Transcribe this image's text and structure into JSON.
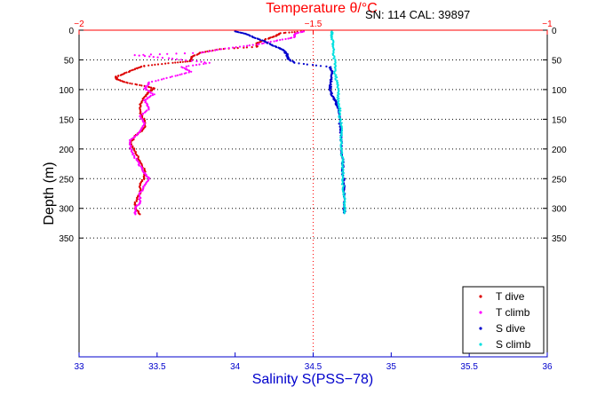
{
  "chart_data": {
    "type": "scatter",
    "annotation": "SN: 114  CAL: 39897",
    "ylabel": "Depth (m)",
    "top_axis": {
      "label": "Temperature θ/°C",
      "lim": [
        -2,
        -1
      ],
      "ticks": [
        -2,
        -1.5,
        -1
      ],
      "tick_labels": [
        "−2",
        "−1.5",
        "−1"
      ],
      "color": "#ff0000"
    },
    "bottom_axis": {
      "label": "Salinity S(PSS−78)",
      "lim": [
        33,
        36
      ],
      "ticks": [
        33,
        33.5,
        34,
        34.5,
        35,
        35.5,
        36
      ],
      "tick_labels": [
        "33",
        "33.5",
        "34",
        "34.5",
        "35",
        "35.5",
        "36"
      ],
      "color": "#0000cc"
    },
    "y_axis": {
      "lim": [
        0,
        550
      ],
      "reversed": true,
      "ticks": [
        0,
        50,
        100,
        150,
        200,
        250,
        300,
        350
      ],
      "tick_labels": [
        "0",
        "50",
        "100",
        "150",
        "200",
        "250",
        "300",
        "350"
      ]
    },
    "grid": "dotted horizontal at depth ticks, vertical at T = -1.5",
    "legend_position": "bottom-right",
    "series": [
      {
        "name": "T dive",
        "axis": "top",
        "color": "#dd0000",
        "points": [
          [
            -1.52,
            2
          ],
          [
            -1.57,
            5
          ],
          [
            -1.58,
            10
          ],
          [
            -1.6,
            15
          ],
          [
            -1.62,
            22
          ],
          [
            -1.62,
            28
          ],
          [
            -1.7,
            32
          ],
          [
            -1.74,
            38
          ],
          [
            -1.76,
            45
          ],
          [
            -1.76,
            52
          ],
          [
            -1.8,
            55
          ],
          [
            -1.86,
            60
          ],
          [
            -1.88,
            65
          ],
          [
            -1.9,
            72
          ],
          [
            -1.92,
            78
          ],
          [
            -1.92,
            82
          ],
          [
            -1.9,
            88
          ],
          [
            -1.86,
            94
          ],
          [
            -1.84,
            98
          ],
          [
            -1.85,
            104
          ],
          [
            -1.86,
            112
          ],
          [
            -1.87,
            125
          ],
          [
            -1.87,
            140
          ],
          [
            -1.86,
            152
          ],
          [
            -1.86,
            165
          ],
          [
            -1.88,
            178
          ],
          [
            -1.89,
            190
          ],
          [
            -1.88,
            205
          ],
          [
            -1.87,
            220
          ],
          [
            -1.86,
            235
          ],
          [
            -1.86,
            248
          ],
          [
            -1.87,
            260
          ],
          [
            -1.87,
            275
          ],
          [
            -1.88,
            290
          ],
          [
            -1.88,
            300
          ],
          [
            -1.87,
            310
          ]
        ]
      },
      {
        "name": "T climb",
        "axis": "top",
        "color": "#ff00ff",
        "points": [
          [
            -1.88,
            310
          ],
          [
            -1.88,
            300
          ],
          [
            -1.87,
            290
          ],
          [
            -1.87,
            275
          ],
          [
            -1.86,
            262
          ],
          [
            -1.85,
            250
          ],
          [
            -1.86,
            240
          ],
          [
            -1.87,
            228
          ],
          [
            -1.88,
            215
          ],
          [
            -1.89,
            200
          ],
          [
            -1.89,
            185
          ],
          [
            -1.87,
            172
          ],
          [
            -1.86,
            158
          ],
          [
            -1.87,
            145
          ],
          [
            -1.85,
            132
          ],
          [
            -1.86,
            118
          ],
          [
            -1.84,
            108
          ],
          [
            -1.86,
            98
          ],
          [
            -1.85,
            88
          ],
          [
            -1.8,
            78
          ],
          [
            -1.76,
            70
          ],
          [
            -1.78,
            62
          ],
          [
            -1.72,
            55
          ],
          [
            -1.8,
            48
          ],
          [
            -1.88,
            42
          ],
          [
            -1.74,
            38
          ],
          [
            -1.68,
            30
          ],
          [
            -1.62,
            24
          ],
          [
            -1.58,
            18
          ],
          [
            -1.54,
            12
          ],
          [
            -1.54,
            6
          ],
          [
            -1.52,
            2
          ]
        ]
      },
      {
        "name": "S dive",
        "axis": "bottom",
        "color": "#0000cc",
        "points": [
          [
            34.0,
            2
          ],
          [
            34.07,
            6
          ],
          [
            34.12,
            12
          ],
          [
            34.18,
            18
          ],
          [
            34.23,
            24
          ],
          [
            34.28,
            30
          ],
          [
            34.31,
            34
          ],
          [
            34.33,
            40
          ],
          [
            34.34,
            48
          ],
          [
            34.38,
            55
          ],
          [
            34.61,
            62
          ],
          [
            34.62,
            70
          ],
          [
            34.62,
            80
          ],
          [
            34.61,
            90
          ],
          [
            34.61,
            100
          ],
          [
            34.62,
            110
          ],
          [
            34.64,
            118
          ],
          [
            34.65,
            125
          ],
          [
            34.67,
            140
          ],
          [
            34.67,
            160
          ],
          [
            34.68,
            180
          ],
          [
            34.68,
            200
          ],
          [
            34.69,
            220
          ],
          [
            34.69,
            240
          ],
          [
            34.7,
            260
          ],
          [
            34.7,
            280
          ],
          [
            34.7,
            300
          ],
          [
            34.7,
            308
          ]
        ]
      },
      {
        "name": "S climb",
        "axis": "bottom",
        "color": "#00e0e0",
        "points": [
          [
            34.7,
            308
          ],
          [
            34.7,
            295
          ],
          [
            34.7,
            280
          ],
          [
            34.69,
            265
          ],
          [
            34.69,
            250
          ],
          [
            34.69,
            235
          ],
          [
            34.69,
            220
          ],
          [
            34.68,
            205
          ],
          [
            34.68,
            190
          ],
          [
            34.68,
            175
          ],
          [
            34.68,
            160
          ],
          [
            34.67,
            145
          ],
          [
            34.67,
            130
          ],
          [
            34.66,
            115
          ],
          [
            34.66,
            100
          ],
          [
            34.65,
            85
          ],
          [
            34.64,
            70
          ],
          [
            34.64,
            55
          ],
          [
            34.63,
            40
          ],
          [
            34.63,
            25
          ],
          [
            34.62,
            12
          ],
          [
            34.62,
            2
          ]
        ]
      }
    ]
  }
}
